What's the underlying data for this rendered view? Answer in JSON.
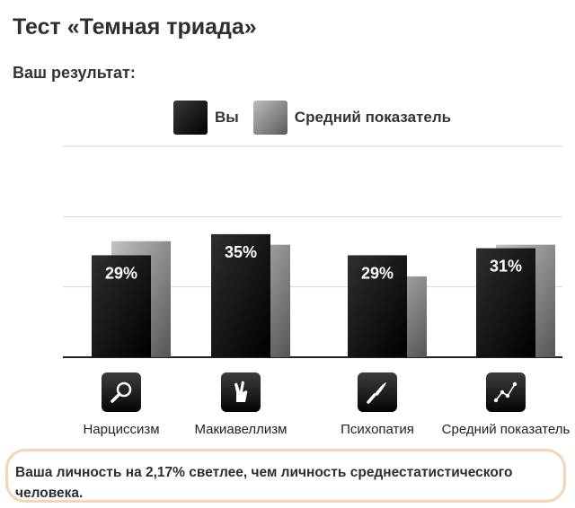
{
  "page": {
    "title": "Тест «Темная триада»",
    "subtitle": "Ваш результат:"
  },
  "legend": {
    "you_label": "Вы",
    "average_label": "Средний показатель"
  },
  "chart_data": {
    "type": "bar",
    "categories": [
      "Нарциссизм",
      "Макиавеллизм",
      "Психопатия",
      "Средний показатель"
    ],
    "series": [
      {
        "name": "Вы",
        "values": [
          29,
          35,
          29,
          31
        ],
        "data_labels": [
          "29%",
          "35%",
          "29%",
          "31%"
        ],
        "color": "#000000"
      },
      {
        "name": "Средний показатель",
        "values": [
          33,
          32,
          23,
          32
        ],
        "color": "#7a7a7a"
      }
    ],
    "ylim": [
      0,
      60
    ],
    "grid": true,
    "legend_position": "top-center",
    "icons": [
      "magnifier-icon",
      "crossed-fingers-icon",
      "knife-icon",
      "line-graph-icon"
    ]
  },
  "summary": {
    "text": "Ваша личность на 2,17% светлее, чем личность среднестатистического человека."
  }
}
